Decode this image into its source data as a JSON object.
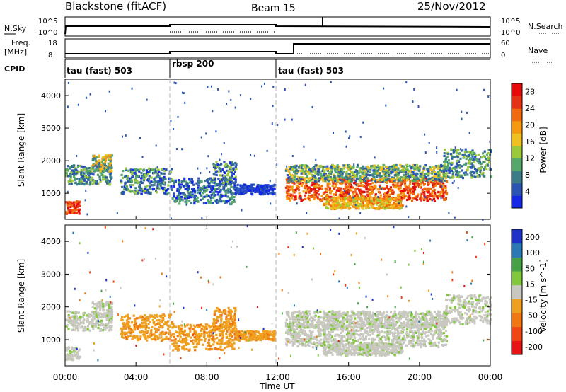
{
  "header": {
    "title": "Blackstone (fitACF)",
    "beam": "Beam 15",
    "date": "25/Nov/2012"
  },
  "noise_panel": {
    "left_label": "N.Sky",
    "right_label": "N.Search",
    "left_ticks": [
      "10^5",
      "10^0"
    ],
    "right_ticks": [
      "10^5",
      "10^0"
    ]
  },
  "freq_panel": {
    "left_label_1": "Freq.",
    "left_label_2": "[MHz]",
    "right_label": "Nave",
    "left_ticks": [
      "18",
      "8"
    ],
    "right_ticks": [
      "60",
      "0"
    ]
  },
  "cpid": {
    "label": "CPID",
    "segments": [
      {
        "start_h": 0,
        "end_h": 6,
        "text": "tau (fast) 503"
      },
      {
        "start_h": 6,
        "end_h": 12,
        "text": "rbsp 200"
      },
      {
        "start_h": 12,
        "end_h": 24,
        "text": "tau (fast) 503"
      }
    ]
  },
  "xaxis": {
    "label": "Time UT",
    "ticks": [
      "00:00",
      "04:00",
      "08:00",
      "12:00",
      "16:00",
      "20:00",
      "00:00"
    ],
    "tick_hours": [
      0,
      4,
      8,
      12,
      16,
      20,
      24
    ]
  },
  "chart_data": [
    {
      "type": "heatmap",
      "ylabel": "Slant Range [km]",
      "yticks": [
        1000,
        2000,
        3000,
        4000
      ],
      "ylim": [
        200,
        4500
      ],
      "xlim_hours": [
        0,
        24
      ],
      "colorbar": {
        "label": "Power [dB]",
        "ticks": [
          "4",
          "8",
          "12",
          "16",
          "20",
          "24",
          "28"
        ],
        "tick_values": [
          4,
          8,
          12,
          16,
          20,
          24,
          28
        ],
        "range": [
          0,
          30
        ],
        "colors": [
          "#1428e6",
          "#2a55b5",
          "#3c7c88",
          "#55a86a",
          "#9cc93c",
          "#f0c020",
          "#f59a10",
          "#f06a10",
          "#e63214",
          "#e60a0a"
        ]
      }
    },
    {
      "type": "heatmap",
      "ylabel": "Slant Range [km]",
      "yticks": [
        1000,
        2000,
        3000,
        4000
      ],
      "ylim": [
        200,
        4500
      ],
      "xlim_hours": [
        0,
        24
      ],
      "colorbar": {
        "label": "Velocity [m s^-1]",
        "ticks": [
          "200",
          "100",
          "50",
          "15",
          "-15",
          "-50",
          "-100",
          "-200"
        ],
        "colors": [
          "#1e32c8",
          "#2a78b4",
          "#46a046",
          "#82c83c",
          "#c8c8c0",
          "#f0a020",
          "#f07814",
          "#f04614",
          "#e61414"
        ]
      }
    }
  ]
}
